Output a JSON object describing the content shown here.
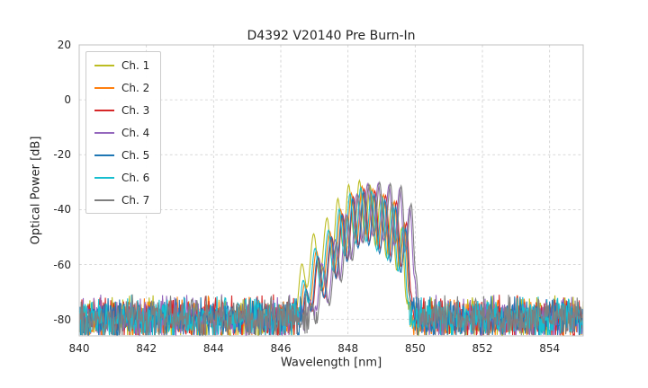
{
  "chart_data": {
    "type": "line",
    "title": "D4392 V20140 Pre Burn-In",
    "xlabel": "Wavelength [nm]",
    "ylabel": "Optical Power [dB]",
    "xlim": [
      840,
      855
    ],
    "ylim": [
      -86,
      20
    ],
    "xticks": [
      840,
      842,
      844,
      846,
      848,
      850,
      852,
      854
    ],
    "yticks": [
      20,
      0,
      -20,
      -40,
      -60,
      -80
    ],
    "grid": true,
    "grid_style": "dashed",
    "legend_position": "upper-left",
    "legend_entries": [
      "Ch. 1",
      "Ch. 2",
      "Ch. 3",
      "Ch. 4",
      "Ch. 5",
      "Ch. 6",
      "Ch. 7"
    ],
    "noise_floor": {
      "mean_db": -79.5,
      "spread_db": 9,
      "step_nm": 0.02,
      "distribution": "triangular"
    },
    "peak_clamp_db": -29,
    "peak_ref_nm": 848.5,
    "peak_profile_nm_db": [
      [
        846.55,
        -86
      ],
      [
        846.75,
        -66
      ],
      [
        846.9,
        -74
      ],
      [
        847.1,
        -54
      ],
      [
        847.28,
        -69
      ],
      [
        847.5,
        -47
      ],
      [
        847.64,
        -62
      ],
      [
        847.82,
        -39
      ],
      [
        847.97,
        -56
      ],
      [
        848.14,
        -33
      ],
      [
        848.3,
        -51
      ],
      [
        848.46,
        -30.5
      ],
      [
        848.62,
        -50
      ],
      [
        848.78,
        -31.5
      ],
      [
        848.94,
        -53
      ],
      [
        849.1,
        -33.5
      ],
      [
        849.26,
        -56
      ],
      [
        849.42,
        -36
      ],
      [
        849.57,
        -60
      ],
      [
        849.72,
        -44
      ],
      [
        849.86,
        -70
      ],
      [
        849.97,
        -86
      ]
    ],
    "series": [
      {
        "name": "Ch. 1",
        "color": "#bcbd22",
        "shift_nm": -0.12,
        "gain_db": 1.0,
        "tilt_db_per_nm": -3,
        "noise_seed": 11
      },
      {
        "name": "Ch. 2",
        "color": "#ff7f0e",
        "shift_nm": -0.04,
        "gain_db": -1.0,
        "tilt_db_per_nm": 0,
        "noise_seed": 22
      },
      {
        "name": "Ch. 3",
        "color": "#d62728",
        "shift_nm": 0.02,
        "gain_db": -2.0,
        "tilt_db_per_nm": 1,
        "noise_seed": 33
      },
      {
        "name": "Ch. 4",
        "color": "#9467bd",
        "shift_nm": 0.12,
        "gain_db": 0.0,
        "tilt_db_per_nm": 4,
        "noise_seed": 44
      },
      {
        "name": "Ch. 5",
        "color": "#1f77b4",
        "shift_nm": 0.0,
        "gain_db": -3.0,
        "tilt_db_per_nm": 0,
        "noise_seed": 55
      },
      {
        "name": "Ch. 6",
        "color": "#17becf",
        "shift_nm": -0.08,
        "gain_db": -1.5,
        "tilt_db_per_nm": -1,
        "noise_seed": 66
      },
      {
        "name": "Ch. 7",
        "color": "#7f7f7f",
        "shift_nm": 0.16,
        "gain_db": 0.0,
        "tilt_db_per_nm": 5,
        "noise_seed": 77
      }
    ],
    "spine_color": "#c0c0c0",
    "gridline_color": "#cccccc"
  }
}
